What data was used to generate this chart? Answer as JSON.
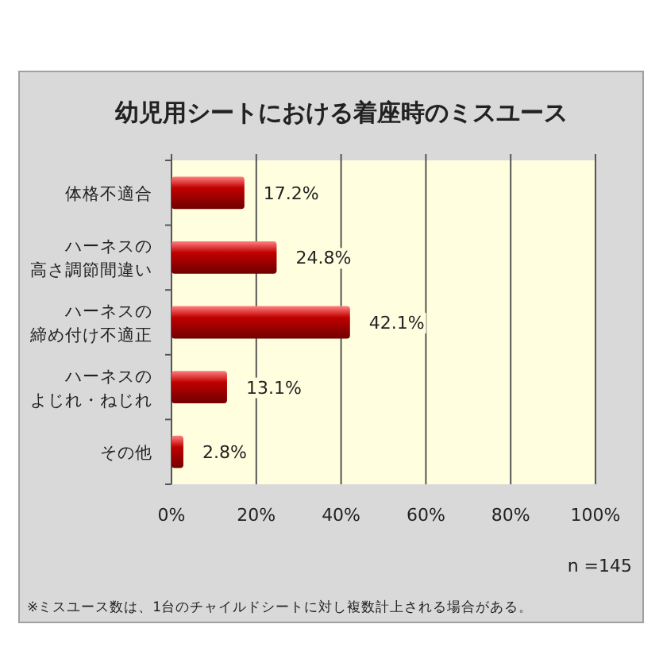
{
  "chart_data": {
    "type": "bar",
    "orientation": "horizontal",
    "title": "幼児用シートにおける着座時のミスユース",
    "categories": [
      "体格不適合",
      "ハーネスの高さ調節間違い",
      "ハーネスの締め付け不適正",
      "ハーネスのよじれ・ねじれ",
      "その他"
    ],
    "values": [
      17.2,
      24.8,
      42.1,
      13.1,
      2.8
    ],
    "value_labels": [
      "17.2%",
      "24.8%",
      "42.1%",
      "13.1%",
      "2.8%"
    ],
    "color": "#c00000",
    "xlim": [
      0,
      100
    ],
    "xticks": [
      {
        "value": 0,
        "label": "0%"
      },
      {
        "value": 20,
        "label": "20%"
      },
      {
        "value": 40,
        "label": "40%"
      },
      {
        "value": 60,
        "label": "60%"
      },
      {
        "value": 80,
        "label": "80%"
      },
      {
        "value": 100,
        "label": "100%"
      }
    ],
    "grid": "x",
    "annotations": [
      "n =145",
      "※ミスユース数は、1台のチャイルドシートに対し複数計上される場合がある。"
    ]
  }
}
